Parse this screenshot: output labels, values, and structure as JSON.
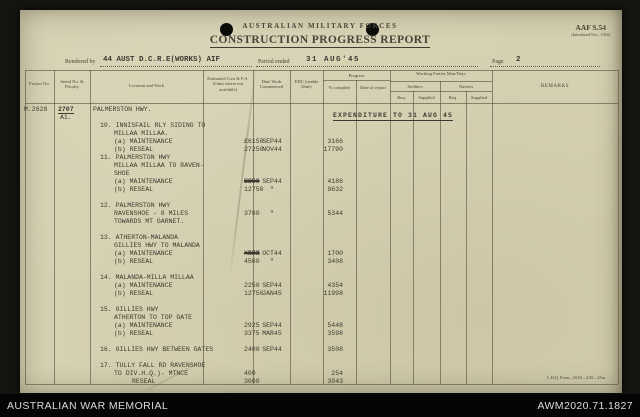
{
  "colors": {
    "paper": "#d6d1b2",
    "ink_typed": "#3e3930",
    "ink_printed": "#4a4438",
    "bar_bg": "#050505",
    "bar_text": "#dcdcdc",
    "bg": "#16140f"
  },
  "form": {
    "org": "AUSTRALIAN MILITARY FORCES",
    "title": "CONSTRUCTION PROGRESS REPORT",
    "form_no": "AAF S.54",
    "form_no_note": "(Introduced Nov., 1944)",
    "rendered_by_label": "Rendered by",
    "rendered_by": "44 AUST D.C.R.E(WORKS) AIF",
    "period_label": "Period ended",
    "period": "31 AUG'45",
    "page_label": "Page",
    "page": "2",
    "print_note": "L.H.Q. Form—5610—2/45—25m."
  },
  "table": {
    "headers": {
      "project": "Project No.",
      "serial": "Serial No. & Priority",
      "location": "Location and Work",
      "cost": "Estimated Cost & F.A. (Omit where not available)",
      "commenced": "Date Work Commenced",
      "edc": "EDC (usable Date)",
      "progress": "Progress",
      "pct_complete": "% complete",
      "date_of_report": "Date of report",
      "working_parties": "Working Parties Man/Days",
      "soldiers": "Soldiers",
      "natives": "Natives",
      "soldiers_req": "Req.",
      "soldiers_supplied": "Supplied",
      "natives_req": "Req.",
      "natives_supplied": "Supplied",
      "remarks": "REMARKS"
    },
    "project_no": "M.2628",
    "serial_no": "2707",
    "priority": "A1.",
    "heading": "PALMERSTON HWY.",
    "stamp": "EXPENDITURE TO 31 AUG 45",
    "lines": [
      {
        "loc": "10. INNISFAIL RLY SIDING TO",
        "indent": 0
      },
      {
        "loc": "MILLAA MILLAA.",
        "indent": 1
      },
      {
        "loc": "(a) MAINTENANCE",
        "indent": 1,
        "cost": "£6150",
        "date": "SEP44",
        "exp": "3166"
      },
      {
        "loc": "(b) RESEAL",
        "indent": 1,
        "cost": "27250",
        "date": "NOV44",
        "exp": "17790"
      },
      {
        "loc": "11. PALMERSTON HWY",
        "indent": 0
      },
      {
        "loc": "MILLAA MILLAA TO RAVEN-",
        "indent": 1
      },
      {
        "loc": "SHOE",
        "indent": 1
      },
      {
        "loc": "(a) MAINTENANCE",
        "indent": 1,
        "cost_pre": "2250 ",
        "cost_strike": "5988",
        "date": "SEP44",
        "exp": "4186"
      },
      {
        "loc": "(b) RESEAL",
        "indent": 1,
        "cost": "12750",
        "date": "\"",
        "exp": "9632"
      },
      {
        "loc": ""
      },
      {
        "loc": "12. PALMERSTON HWY",
        "indent": 0
      },
      {
        "loc": "RAVENSHOE - 8 MILES",
        "indent": 1,
        "cost": "3700",
        "date": "\"",
        "exp": "5344"
      },
      {
        "loc": "TOWARDS MT GARNET.",
        "indent": 1
      },
      {
        "loc": ""
      },
      {
        "loc": "13. ATHERTON-MALANDA",
        "indent": 0
      },
      {
        "loc": "GILLIES HWY TO MALANDA",
        "indent": 1
      },
      {
        "loc": "(a) MAINTENANCE",
        "indent": 1,
        "cost_strike": "XXXX",
        "cost": " 900",
        "date": "OCT44",
        "exp": "1700"
      },
      {
        "loc": "(b) RESEAL",
        "indent": 1,
        "cost": "4500",
        "date": "\"",
        "exp": "3408"
      },
      {
        "loc": ""
      },
      {
        "loc": "14. MALANDA-MILLA MILLAA",
        "indent": 0
      },
      {
        "loc": "(a) MAINTENANCE",
        "indent": 1,
        "cost": "2250",
        "date": "SEP44",
        "exp": "4354"
      },
      {
        "loc": "(b) RESEAL",
        "indent": 1,
        "cost": "12750",
        "date": "JAN45",
        "exp": "11998"
      },
      {
        "loc": ""
      },
      {
        "loc": "15. GILLIES HWY",
        "indent": 0
      },
      {
        "loc": "ATHERTON TO TOP GATE",
        "indent": 1
      },
      {
        "loc": "(a) MAINTENANCE",
        "indent": 1,
        "cost": "2925",
        "date": "SEP44",
        "exp": "5448"
      },
      {
        "loc": "(b) RESEAL",
        "indent": 1,
        "cost": "3375",
        "date": "MAR45",
        "exp": "3598"
      },
      {
        "loc": ""
      },
      {
        "loc": "16. GILLIES HWY BETWEEN GATES",
        "indent": 0,
        "cost": "2400",
        "date": "SEP44",
        "exp": "3508"
      },
      {
        "loc": ""
      },
      {
        "loc": "17. TULLY FALL RD RAVENSHOE",
        "indent": 0
      },
      {
        "loc": "TO DIV.H.Q.)- MTNCE",
        "indent": 1,
        "cost": "400",
        "exp": "254"
      },
      {
        "loc": "RESEAL",
        "indent": 2,
        "cost": "3000",
        "exp": "3043"
      }
    ]
  },
  "archive_bar": {
    "left": "AUSTRALIAN WAR MEMORIAL",
    "right": "AWM2020.71.1827"
  }
}
